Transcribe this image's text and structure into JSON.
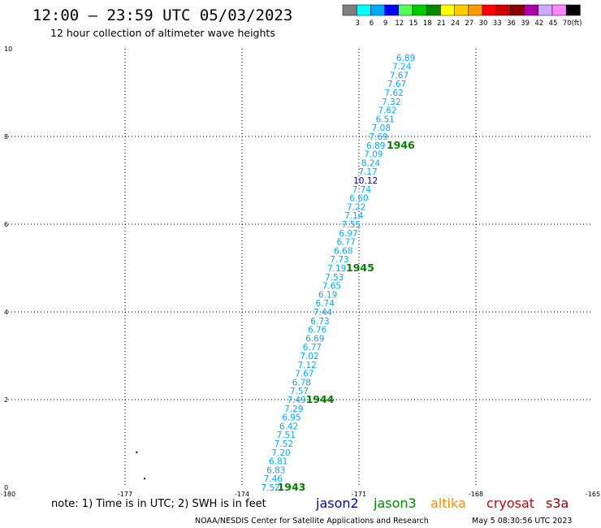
{
  "title": "12:00 – 23:59 UTC 05/03/2023",
  "subtitle": "12 hour collection of altimeter wave heights",
  "color_scale": {
    "labels": [
      "3",
      "6",
      "9",
      "12",
      "15",
      "18",
      "21",
      "24",
      "27",
      "30",
      "33",
      "36",
      "39",
      "42",
      "45",
      "70"
    ],
    "unit": "(ft)",
    "colors": [
      "#808080",
      "#00ffff",
      "#00aaff",
      "#0000ff",
      "#55ff55",
      "#00cc00",
      "#008800",
      "#ffff00",
      "#ffcc00",
      "#ff9900",
      "#ff0000",
      "#cc0000",
      "#880000",
      "#aa00aa",
      "#ccaaff",
      "#ff88ff",
      "#000000"
    ]
  },
  "chart_data": {
    "type": "scatter",
    "xlim": [
      -180,
      -165
    ],
    "ylim": [
      0,
      10
    ],
    "x_ticks": [
      "-180",
      "-177",
      "-174",
      "-171",
      "-168",
      "-165"
    ],
    "y_ticks": [
      "0",
      "2",
      "4",
      "6",
      "8",
      "10"
    ],
    "grid": true,
    "swh_points": [
      {
        "label": "6.89",
        "lon": -169.8,
        "lat": 9.8,
        "color": "#00aaff"
      },
      {
        "label": "7.24",
        "lon": -169.9,
        "lat": 9.6,
        "color": "#00aaff"
      },
      {
        "label": "7.67",
        "lon": -169.97,
        "lat": 9.4,
        "color": "#00aaff"
      },
      {
        "label": "7.67",
        "lon": -170.03,
        "lat": 9.2,
        "color": "#00aaff"
      },
      {
        "label": "7.62",
        "lon": -170.1,
        "lat": 9.0,
        "color": "#00aaff"
      },
      {
        "label": "7.32",
        "lon": -170.17,
        "lat": 8.8,
        "color": "#00aaff"
      },
      {
        "label": "7.62",
        "lon": -170.27,
        "lat": 8.6,
        "color": "#00aaff"
      },
      {
        "label": "6.51",
        "lon": -170.33,
        "lat": 8.4,
        "color": "#00aaff"
      },
      {
        "label": "7.08",
        "lon": -170.43,
        "lat": 8.2,
        "color": "#00aaff"
      },
      {
        "label": "7.69",
        "lon": -170.5,
        "lat": 8.0,
        "color": "#00aaff"
      },
      {
        "label": "6.89",
        "lon": -170.57,
        "lat": 7.8,
        "color": "#00aaff"
      },
      {
        "label": "7.09",
        "lon": -170.63,
        "lat": 7.6,
        "color": "#00aaff"
      },
      {
        "label": "8.24",
        "lon": -170.7,
        "lat": 7.4,
        "color": "#00aaff"
      },
      {
        "label": "7.17",
        "lon": -170.77,
        "lat": 7.2,
        "color": "#00aaff"
      },
      {
        "label": "10.12",
        "lon": -170.83,
        "lat": 7.0,
        "color": "#0000cc"
      },
      {
        "label": "7.74",
        "lon": -170.93,
        "lat": 6.8,
        "color": "#00aaff"
      },
      {
        "label": "6.60",
        "lon": -171.0,
        "lat": 6.6,
        "color": "#00aaff"
      },
      {
        "label": "7.22",
        "lon": -171.07,
        "lat": 6.4,
        "color": "#00aaff"
      },
      {
        "label": "7.14",
        "lon": -171.13,
        "lat": 6.2,
        "color": "#00aaff"
      },
      {
        "label": "7.55",
        "lon": -171.2,
        "lat": 6.0,
        "color": "#00aaff"
      },
      {
        "label": "6.97",
        "lon": -171.27,
        "lat": 5.8,
        "color": "#00aaff"
      },
      {
        "label": "6.77",
        "lon": -171.33,
        "lat": 5.6,
        "color": "#00aaff"
      },
      {
        "label": "6.68",
        "lon": -171.4,
        "lat": 5.4,
        "color": "#00aaff"
      },
      {
        "label": "7.73",
        "lon": -171.5,
        "lat": 5.2,
        "color": "#00aaff"
      },
      {
        "label": "7.19",
        "lon": -171.57,
        "lat": 5.0,
        "color": "#00aaff"
      },
      {
        "label": "7.53",
        "lon": -171.63,
        "lat": 4.8,
        "color": "#00aaff"
      },
      {
        "label": "7.65",
        "lon": -171.7,
        "lat": 4.6,
        "color": "#00aaff"
      },
      {
        "label": "6.19",
        "lon": -171.8,
        "lat": 4.4,
        "color": "#00aaff"
      },
      {
        "label": "6.74",
        "lon": -171.87,
        "lat": 4.2,
        "color": "#00aaff"
      },
      {
        "label": "7.44",
        "lon": -171.93,
        "lat": 4.0,
        "color": "#00aaff"
      },
      {
        "label": "6.73",
        "lon": -172.0,
        "lat": 3.8,
        "color": "#00aaff"
      },
      {
        "label": "6.76",
        "lon": -172.07,
        "lat": 3.6,
        "color": "#00aaff"
      },
      {
        "label": "6.69",
        "lon": -172.13,
        "lat": 3.4,
        "color": "#00aaff"
      },
      {
        "label": "6.77",
        "lon": -172.2,
        "lat": 3.2,
        "color": "#00aaff"
      },
      {
        "label": "7.02",
        "lon": -172.27,
        "lat": 3.0,
        "color": "#00aaff"
      },
      {
        "label": "7.12",
        "lon": -172.33,
        "lat": 2.8,
        "color": "#00aaff"
      },
      {
        "label": "7.67",
        "lon": -172.4,
        "lat": 2.6,
        "color": "#00aaff"
      },
      {
        "label": "6.78",
        "lon": -172.47,
        "lat": 2.4,
        "color": "#00aaff"
      },
      {
        "label": "7.57",
        "lon": -172.53,
        "lat": 2.2,
        "color": "#00aaff"
      },
      {
        "label": "7.49",
        "lon": -172.6,
        "lat": 2.0,
        "color": "#00aaff"
      },
      {
        "label": "7.29",
        "lon": -172.67,
        "lat": 1.8,
        "color": "#00aaff"
      },
      {
        "label": "6.95",
        "lon": -172.73,
        "lat": 1.6,
        "color": "#00aaff"
      },
      {
        "label": "6.42",
        "lon": -172.8,
        "lat": 1.4,
        "color": "#00aaff"
      },
      {
        "label": "7.51",
        "lon": -172.87,
        "lat": 1.2,
        "color": "#00aaff"
      },
      {
        "label": "7.52",
        "lon": -172.93,
        "lat": 1.0,
        "color": "#00aaff"
      },
      {
        "label": "7.20",
        "lon": -173.0,
        "lat": 0.8,
        "color": "#00aaff"
      },
      {
        "label": "6.81",
        "lon": -173.07,
        "lat": 0.6,
        "color": "#00aaff"
      },
      {
        "label": "6.83",
        "lon": -173.13,
        "lat": 0.4,
        "color": "#00aaff"
      },
      {
        "label": "7.46",
        "lon": -173.2,
        "lat": 0.2,
        "color": "#00aaff"
      },
      {
        "label": "7.52",
        "lon": -173.27,
        "lat": 0.0,
        "color": "#00aaff"
      }
    ],
    "time_labels": [
      {
        "label": "1946",
        "lon": -169.93,
        "lat": 7.8
      },
      {
        "label": "1945",
        "lon": -170.97,
        "lat": 5.0
      },
      {
        "label": "1944",
        "lon": -172.0,
        "lat": 2.0
      },
      {
        "label": "1943",
        "lon": -172.73,
        "lat": -0.0
      }
    ],
    "dots": [
      {
        "lon": -176.7,
        "lat": 0.8
      },
      {
        "lon": -176.5,
        "lat": 0.2
      }
    ]
  },
  "footer": {
    "note": "note: 1) Time is in UTC; 2) SWH is in feet",
    "satellites": [
      {
        "name": "jason2",
        "color": "#0000cc"
      },
      {
        "name": "jason3",
        "color": "#008800"
      },
      {
        "name": "altika",
        "color": "#ff8800"
      },
      {
        "name": "cryosat",
        "color": "#cc0000"
      },
      {
        "name": "s3a",
        "color": "#880000"
      }
    ],
    "credit": "NOAA/NESDIS Center for Satellite Applications and Research",
    "timestamp": "May  5 08:30:56 UTC 2023"
  }
}
